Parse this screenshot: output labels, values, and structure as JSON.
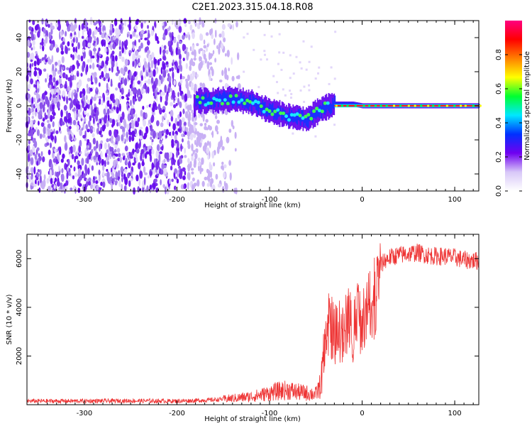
{
  "figure": {
    "title": "C2E1.2023.315.04.18.R08"
  },
  "chart_data": [
    {
      "type": "heatmap",
      "xlabel": "Height of straight line (km)",
      "ylabel": "Frequency (Hz)",
      "xlim": [
        -362,
        126
      ],
      "ylim": [
        -50,
        50
      ],
      "xticks": [
        "-300",
        "-200",
        "-100",
        "0",
        "100"
      ],
      "yticks": [
        "-40",
        "-20",
        "0",
        "20",
        "40"
      ],
      "grid": false,
      "colorbar": {
        "label": "Normalized spectral amplitude",
        "range": [
          0,
          1
        ],
        "ticks": [
          "0.0",
          "0.2",
          "0.4",
          "0.6",
          "0.8"
        ],
        "colormap": [
          "#ffffff",
          "#d8c8f8",
          "#7000f0",
          "#0030ff",
          "#00e8ff",
          "#00ff30",
          "#ffff00",
          "#ff8000",
          "#ff0000",
          "#ff0080"
        ]
      },
      "ridge": {
        "description_points_x": [
          -180,
          -160,
          -140,
          -120,
          -100,
          -80,
          -60,
          -45,
          -30,
          -10,
          0,
          20,
          60,
          100,
          126
        ],
        "description_points_y": [
          3,
          3,
          4,
          2,
          -3,
          -6,
          -8,
          -2,
          1,
          1,
          0,
          0,
          0,
          0,
          0
        ]
      }
    },
    {
      "type": "line",
      "xlabel": "Height of straight line (km)",
      "ylabel": "SNR (10 * v/v)",
      "xlim": [
        -362,
        126
      ],
      "ylim": [
        0,
        7000
      ],
      "xticks": [
        "-300",
        "-200",
        "-100",
        "0",
        "100"
      ],
      "yticks": [
        "2000",
        "4000",
        "6000"
      ],
      "grid": false,
      "series": [
        {
          "color": "#ee3333",
          "x": [
            -362,
            -300,
            -250,
            -200,
            -180,
            -160,
            -140,
            -120,
            -110,
            -100,
            -90,
            -80,
            -70,
            -60,
            -50,
            -45,
            -40,
            -35,
            -30,
            -25,
            -20,
            -15,
            -10,
            -5,
            0,
            5,
            10,
            15,
            20,
            25,
            30,
            40,
            50,
            60,
            70,
            80,
            90,
            100,
            110,
            126
          ],
          "values": [
            150,
            150,
            160,
            150,
            170,
            200,
            260,
            330,
            400,
            480,
            560,
            600,
            520,
            480,
            430,
            800,
            2200,
            3500,
            2800,
            3200,
            2600,
            3800,
            2900,
            4100,
            3100,
            4400,
            4000,
            5200,
            5700,
            5950,
            6050,
            6150,
            6200,
            6250,
            6150,
            6100,
            6100,
            6050,
            5950,
            5900
          ]
        }
      ]
    }
  ]
}
